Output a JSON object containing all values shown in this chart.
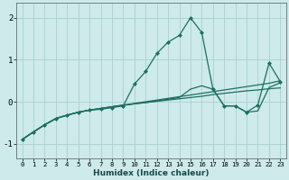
{
  "xlabel": "Humidex (Indice chaleur)",
  "bg_color": "#ceeaea",
  "grid_color": "#aad0d0",
  "line_color": "#1a7060",
  "xlim": [
    -0.5,
    23.5
  ],
  "ylim": [
    -1.35,
    2.35
  ],
  "yticks": [
    -1,
    0,
    1,
    2
  ],
  "xticks": [
    0,
    1,
    2,
    3,
    4,
    5,
    6,
    7,
    8,
    9,
    10,
    11,
    12,
    13,
    14,
    15,
    16,
    17,
    18,
    19,
    20,
    21,
    22,
    23
  ],
  "series": [
    {
      "x": [
        0,
        1,
        2,
        3,
        4,
        5,
        6,
        7,
        8,
        9,
        10,
        11,
        12,
        13,
        14,
        15,
        16,
        17,
        18,
        19,
        20,
        21,
        22,
        23
      ],
      "y": [
        -0.9,
        -0.72,
        -0.55,
        -0.4,
        -0.32,
        -0.25,
        -0.2,
        -0.18,
        -0.14,
        -0.1,
        0.42,
        0.72,
        1.15,
        1.42,
        1.58,
        2.0,
        1.65,
        0.3,
        -0.1,
        -0.1,
        -0.25,
        -0.08,
        0.92,
        0.48
      ],
      "marker": "D",
      "markersize": 2.0,
      "linewidth": 0.9,
      "has_marker": true
    },
    {
      "x": [
        0,
        1,
        2,
        3,
        4,
        5,
        6,
        7,
        8,
        9,
        10,
        11,
        12,
        13,
        14,
        15,
        16,
        17,
        18,
        19,
        20,
        21,
        22,
        23
      ],
      "y": [
        -0.9,
        -0.72,
        -0.55,
        -0.4,
        -0.32,
        -0.25,
        -0.2,
        -0.16,
        -0.12,
        -0.09,
        -0.05,
        -0.02,
        0.02,
        0.06,
        0.1,
        0.3,
        0.38,
        0.3,
        -0.1,
        -0.1,
        -0.25,
        -0.22,
        0.34,
        0.45
      ],
      "marker": null,
      "markersize": 0,
      "linewidth": 0.9,
      "has_marker": false
    },
    {
      "x": [
        0,
        1,
        2,
        3,
        4,
        5,
        6,
        7,
        8,
        9,
        10,
        11,
        12,
        13,
        14,
        15,
        16,
        17,
        18,
        19,
        20,
        21,
        22,
        23
      ],
      "y": [
        -0.9,
        -0.72,
        -0.55,
        -0.4,
        -0.32,
        -0.25,
        -0.2,
        -0.16,
        -0.12,
        -0.08,
        -0.05,
        -0.02,
        0.01,
        0.04,
        0.07,
        0.1,
        0.13,
        0.17,
        0.2,
        0.23,
        0.26,
        0.28,
        0.31,
        0.33
      ],
      "marker": null,
      "markersize": 0,
      "linewidth": 0.9,
      "has_marker": false
    },
    {
      "x": [
        0,
        1,
        2,
        3,
        4,
        5,
        6,
        7,
        8,
        9,
        10,
        11,
        12,
        13,
        14,
        15,
        16,
        17,
        18,
        19,
        20,
        21,
        22,
        23
      ],
      "y": [
        -0.9,
        -0.72,
        -0.55,
        -0.4,
        -0.32,
        -0.25,
        -0.2,
        -0.16,
        -0.12,
        -0.08,
        -0.04,
        0.0,
        0.04,
        0.08,
        0.12,
        0.16,
        0.2,
        0.24,
        0.28,
        0.32,
        0.36,
        0.4,
        0.44,
        0.5
      ],
      "marker": null,
      "markersize": 0,
      "linewidth": 0.9,
      "has_marker": false
    }
  ]
}
